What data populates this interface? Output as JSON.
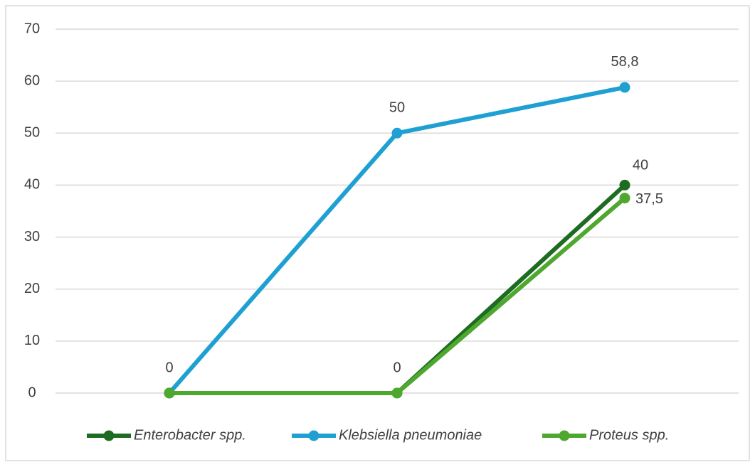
{
  "chart_data": {
    "type": "line",
    "categories": [
      null,
      null,
      null
    ],
    "series": [
      {
        "name": "Enterobacter spp.",
        "color": "#1e6b22",
        "values": [
          0,
          0,
          40
        ],
        "value_labels": [
          null,
          "0",
          "40"
        ]
      },
      {
        "name": "Klebsiella pneumoniae",
        "color": "#1ea0d2",
        "values": [
          0,
          50,
          58.8
        ],
        "value_labels": [
          "0",
          "50",
          "58,8"
        ]
      },
      {
        "name": "Proteus spp.",
        "color": "#4ea72e",
        "values": [
          0,
          0,
          37.5
        ],
        "value_labels": [
          null,
          null,
          "37,5"
        ]
      }
    ],
    "ylim": [
      0,
      70
    ],
    "yticks": [
      0,
      10,
      20,
      30,
      40,
      50,
      60,
      70
    ],
    "grid": true,
    "legend": "bottom"
  }
}
